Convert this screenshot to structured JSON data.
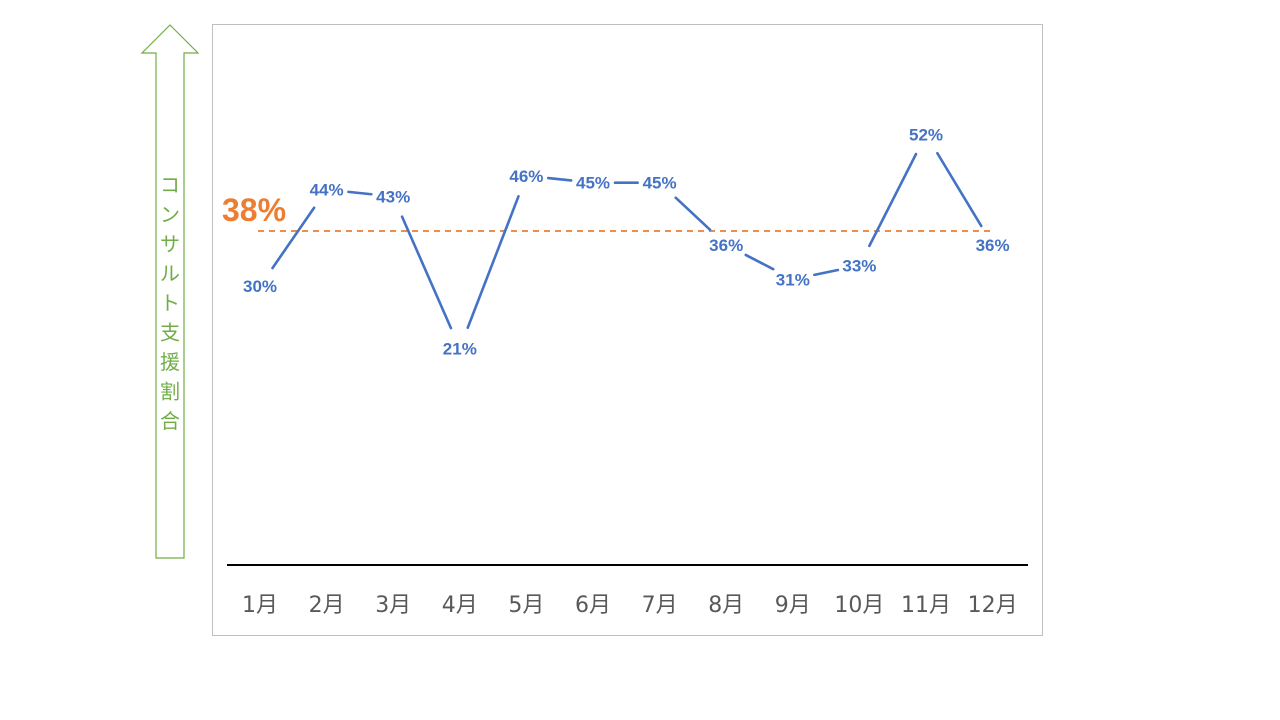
{
  "chart_data": {
    "type": "line",
    "categories": [
      "1月",
      "2月",
      "3月",
      "4月",
      "5月",
      "6月",
      "7月",
      "8月",
      "9月",
      "10月",
      "11月",
      "12月"
    ],
    "values": [
      30,
      44,
      43,
      21,
      46,
      45,
      45,
      36,
      31,
      33,
      52,
      36
    ],
    "value_labels": [
      "30%",
      "44%",
      "43%",
      "21%",
      "46%",
      "45%",
      "45%",
      "36%",
      "31%",
      "33%",
      "52%",
      "36%"
    ],
    "ylabel": "コンサルト支援割合",
    "average": {
      "value": 38,
      "label": "38%"
    },
    "grid": false,
    "legend": "none"
  },
  "colors": {
    "series": "#4472C4",
    "average": "#ED7D31",
    "axis_arrow": "#70AD47",
    "baseline": "#000000",
    "frame": "#BFBFBF",
    "month_text": "#595959"
  }
}
